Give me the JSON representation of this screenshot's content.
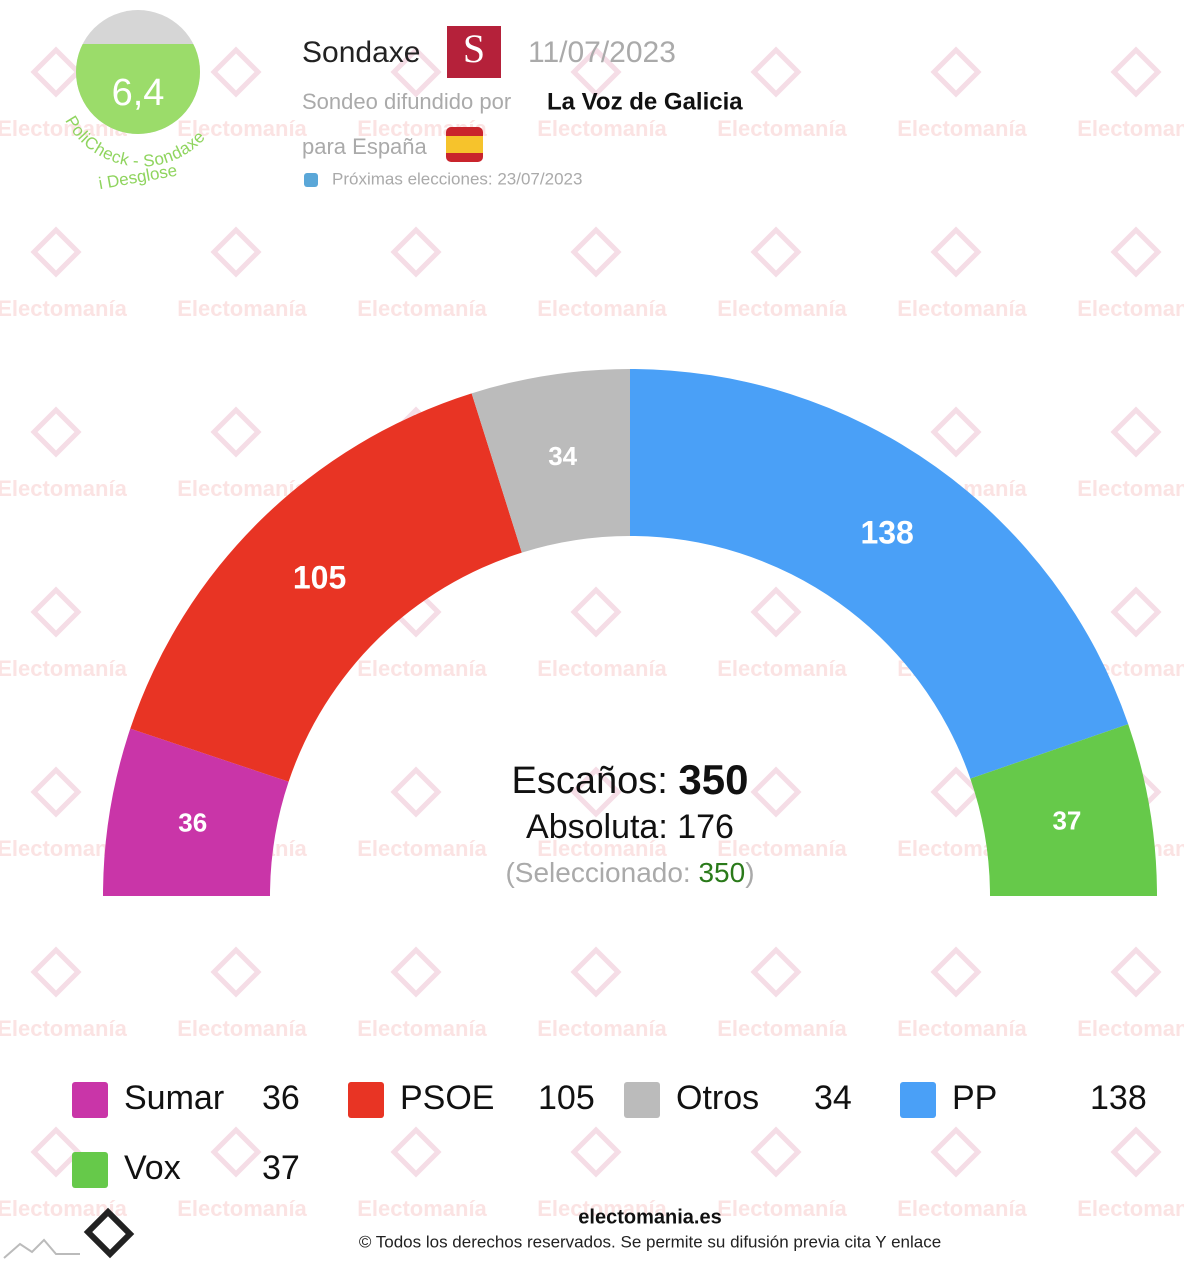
{
  "header": {
    "score": "6,4",
    "score_caption": "PoliCheck - Sondaxe",
    "breakdown": "i Desglose",
    "pollster": "Sondaxe",
    "date": "11/07/2023",
    "published_by_label": "Sondeo difundido por",
    "publisher": "La Voz de Galicia",
    "region": "para España",
    "next_elections": "Próximas elecciones: 23/07/2023",
    "watermark": "Electomanía"
  },
  "chart_data": {
    "type": "hemicycle",
    "categories": [
      "Sumar",
      "PSOE",
      "Otros",
      "PP",
      "Vox"
    ],
    "values": [
      36,
      105,
      34,
      138,
      37
    ],
    "colors": [
      "#c935a8",
      "#e83424",
      "#bbbbbb",
      "#4aa0f7",
      "#66c94a"
    ],
    "seats_label": "Escaños:",
    "seats_total": 350,
    "majority_label": "Absoluta:",
    "majority": 176,
    "selected_label": "(Seleccionado:",
    "selected": 350,
    "selected_close": ")"
  },
  "footer": {
    "site": "electomania.es",
    "copyright": "© Todos los derechos reservados. Se permite su difusión previa cita Y enlace"
  }
}
